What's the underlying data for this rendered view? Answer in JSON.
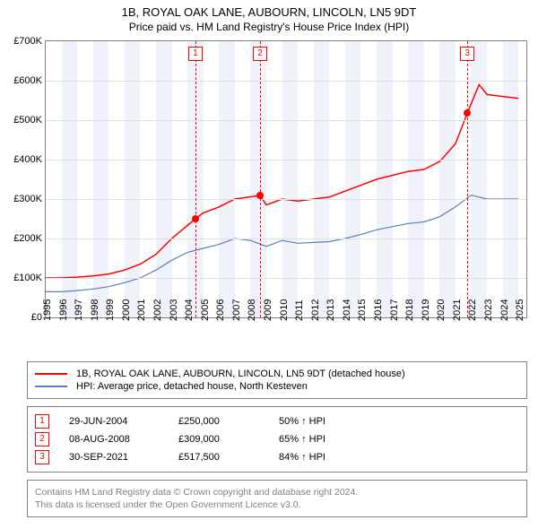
{
  "title": "1B, ROYAL OAK LANE, AUBOURN, LINCOLN, LN5 9DT",
  "subtitle": "Price paid vs. HM Land Registry's House Price Index (HPI)",
  "chart": {
    "type": "line",
    "background_color": "#ffffff",
    "grid_color": "#e0e0e0",
    "border_color": "#808080",
    "band_color": "#e8eef7",
    "y": {
      "min": 0,
      "max": 700000,
      "ticks": [
        0,
        100000,
        200000,
        300000,
        400000,
        500000,
        600000,
        700000
      ],
      "tick_labels": [
        "£0",
        "£100K",
        "£200K",
        "£300K",
        "£400K",
        "£500K",
        "£600K",
        "£700K"
      ]
    },
    "x": {
      "min": 1995,
      "max": 2025.5,
      "ticks": [
        1995,
        1996,
        1997,
        1998,
        1999,
        2000,
        2001,
        2002,
        2003,
        2004,
        2005,
        2006,
        2007,
        2008,
        2009,
        2010,
        2011,
        2012,
        2013,
        2014,
        2015,
        2016,
        2017,
        2018,
        2019,
        2020,
        2021,
        2022,
        2023,
        2024,
        2025
      ],
      "tick_labels": [
        "1995",
        "1996",
        "1997",
        "1998",
        "1999",
        "2000",
        "2001",
        "2002",
        "2003",
        "2004",
        "2005",
        "2006",
        "2007",
        "2008",
        "2009",
        "2010",
        "2011",
        "2012",
        "2013",
        "2014",
        "2015",
        "2016",
        "2017",
        "2018",
        "2019",
        "2020",
        "2021",
        "2022",
        "2023",
        "2024",
        "2025"
      ]
    },
    "series": [
      {
        "name": "1B, ROYAL OAK LANE, AUBOURN, LINCOLN, LN5 9DT (detached house)",
        "color": "#ff0000",
        "line_width": 1.5,
        "data": [
          [
            1995,
            100000
          ],
          [
            1996,
            100000
          ],
          [
            1997,
            102000
          ],
          [
            1998,
            105000
          ],
          [
            1999,
            110000
          ],
          [
            2000,
            120000
          ],
          [
            2001,
            135000
          ],
          [
            2002,
            160000
          ],
          [
            2003,
            200000
          ],
          [
            2004.5,
            250000
          ],
          [
            2005,
            265000
          ],
          [
            2006,
            280000
          ],
          [
            2007,
            300000
          ],
          [
            2008.6,
            309000
          ],
          [
            2009,
            285000
          ],
          [
            2010,
            300000
          ],
          [
            2011,
            295000
          ],
          [
            2012,
            300000
          ],
          [
            2013,
            305000
          ],
          [
            2014,
            320000
          ],
          [
            2015,
            335000
          ],
          [
            2016,
            350000
          ],
          [
            2017,
            360000
          ],
          [
            2018,
            370000
          ],
          [
            2019,
            375000
          ],
          [
            2020,
            395000
          ],
          [
            2021,
            440000
          ],
          [
            2021.75,
            517500
          ],
          [
            2022.5,
            590000
          ],
          [
            2023,
            565000
          ],
          [
            2024,
            560000
          ],
          [
            2025,
            555000
          ]
        ]
      },
      {
        "name": "HPI: Average price, detached house, North Kesteven",
        "color": "#5b7fb8",
        "line_width": 1.2,
        "data": [
          [
            1995,
            65000
          ],
          [
            1996,
            65000
          ],
          [
            1997,
            68000
          ],
          [
            1998,
            72000
          ],
          [
            1999,
            78000
          ],
          [
            2000,
            88000
          ],
          [
            2001,
            100000
          ],
          [
            2002,
            120000
          ],
          [
            2003,
            145000
          ],
          [
            2004,
            165000
          ],
          [
            2005,
            175000
          ],
          [
            2006,
            185000
          ],
          [
            2007,
            200000
          ],
          [
            2008,
            195000
          ],
          [
            2009,
            180000
          ],
          [
            2010,
            195000
          ],
          [
            2011,
            188000
          ],
          [
            2012,
            190000
          ],
          [
            2013,
            192000
          ],
          [
            2014,
            200000
          ],
          [
            2015,
            210000
          ],
          [
            2016,
            222000
          ],
          [
            2017,
            230000
          ],
          [
            2018,
            238000
          ],
          [
            2019,
            242000
          ],
          [
            2020,
            255000
          ],
          [
            2021,
            280000
          ],
          [
            2022,
            310000
          ],
          [
            2023,
            300000
          ],
          [
            2024,
            300000
          ],
          [
            2025,
            300000
          ]
        ]
      }
    ],
    "event_markers": [
      {
        "n": "1",
        "x": 2004.5,
        "y": 250000
      },
      {
        "n": "2",
        "x": 2008.6,
        "y": 309000
      },
      {
        "n": "3",
        "x": 2021.75,
        "y": 517500
      }
    ]
  },
  "legend": {
    "items": [
      {
        "color": "#ff0000",
        "label": "1B, ROYAL OAK LANE, AUBOURN, LINCOLN, LN5 9DT (detached house)"
      },
      {
        "color": "#5b7fb8",
        "label": "HPI: Average price, detached house, North Kesteven"
      }
    ]
  },
  "events": [
    {
      "n": "1",
      "date": "29-JUN-2004",
      "price": "£250,000",
      "pct": "50% ",
      "suffix": " HPI"
    },
    {
      "n": "2",
      "date": "08-AUG-2008",
      "price": "£309,000",
      "pct": "65% ",
      "suffix": " HPI"
    },
    {
      "n": "3",
      "date": "30-SEP-2021",
      "price": "£517,500",
      "pct": "84% ",
      "suffix": " HPI"
    }
  ],
  "footer": {
    "line1": "Contains HM Land Registry data © Crown copyright and database right 2024.",
    "line2": "This data is licensed under the Open Government Licence v3.0."
  }
}
